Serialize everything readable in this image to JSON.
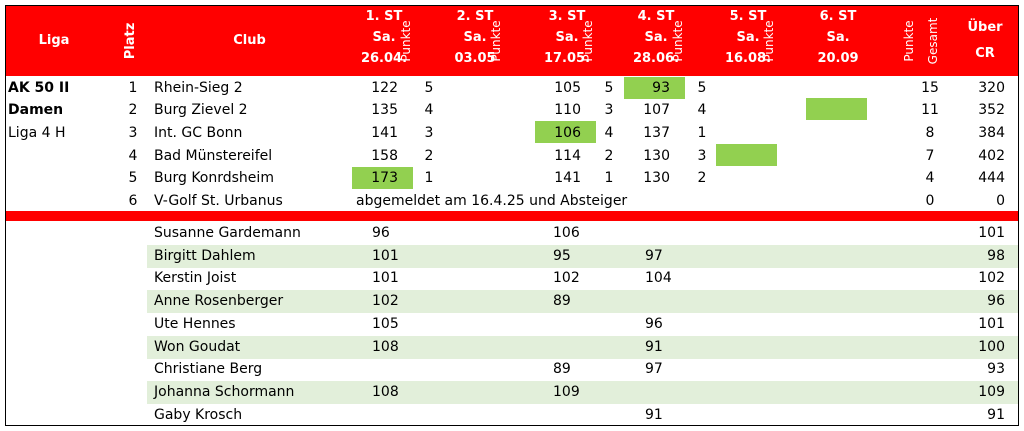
{
  "header": {
    "liga": "Liga",
    "platz": "Platz",
    "club": "Club",
    "rounds": [
      {
        "line1": "1. ST",
        "line2": "Sa.",
        "line3": "26.04."
      },
      {
        "line1": "2. ST",
        "line2": "Sa.",
        "line3": "03.05"
      },
      {
        "line1": "3. ST",
        "line2": "Sa.",
        "line3": "17.05."
      },
      {
        "line1": "4. ST",
        "line2": "Sa.",
        "line3": "28.06."
      },
      {
        "line1": "5. ST",
        "line2": "Sa.",
        "line3": "16.08."
      },
      {
        "line1": "6. ST",
        "line2": "Sa.",
        "line3": "20.09"
      }
    ],
    "punkte": "Punkte",
    "gesamt": "Gesamt",
    "ueber_line1": "Über",
    "ueber_line2": "CR"
  },
  "league": {
    "line1": "AK 50 II",
    "line2": "Damen",
    "line3": "Liga 4 H"
  },
  "teams": [
    {
      "platz": "1",
      "club": "Rhein-Sieg 2",
      "r1": "122",
      "p1": "5",
      "r3": "105",
      "p3": "5",
      "r4": "93",
      "p4": "5",
      "gesamt": "15",
      "cr": "320"
    },
    {
      "platz": "2",
      "club": "Burg Zievel 2",
      "r1": "135",
      "p1": "4",
      "r3": "110",
      "p3": "3",
      "r4": "107",
      "p4": "4",
      "gesamt": "11",
      "cr": "352"
    },
    {
      "platz": "3",
      "club": "Int. GC Bonn",
      "r1": "141",
      "p1": "3",
      "r3": "106",
      "p3": "4",
      "r4": "137",
      "p4": "1",
      "gesamt": "8",
      "cr": "384"
    },
    {
      "platz": "4",
      "club": "Bad Münstereifel",
      "r1": "158",
      "p1": "2",
      "r3": "114",
      "p3": "2",
      "r4": "130",
      "p4": "3",
      "gesamt": "7",
      "cr": "402"
    },
    {
      "platz": "5",
      "club": "Burg Konrdsheim",
      "r1": "173",
      "p1": "1",
      "r3": "141",
      "p3": "1",
      "r4": "130",
      "p4": "2",
      "gesamt": "4",
      "cr": "444"
    },
    {
      "platz": "6",
      "club": "V-Golf St. Urbanus",
      "note": "abgemeldet am 16.4.25 und Absteiger",
      "gesamt": "0",
      "cr": "0"
    }
  ],
  "players": [
    {
      "name": "Susanne Gardemann",
      "r1": "96",
      "r3": "106",
      "r4": "",
      "cr": "101"
    },
    {
      "name": "Birgitt Dahlem",
      "r1": "101",
      "r3": "95",
      "r4": "97",
      "cr": "98"
    },
    {
      "name": "Kerstin Joist",
      "r1": "101",
      "r3": "102",
      "r4": "104",
      "cr": "102"
    },
    {
      "name": "Anne Rosenberger",
      "r1": "102",
      "r3": "89",
      "r4": "",
      "cr": "96"
    },
    {
      "name": "Ute Hennes",
      "r1": "105",
      "r3": "",
      "r4": "96",
      "cr": "101"
    },
    {
      "name": "Won Goudat",
      "r1": "108",
      "r3": "",
      "r4": "91",
      "cr": "100"
    },
    {
      "name": "Christiane Berg",
      "r1": "",
      "r3": "89",
      "r4": "97",
      "cr": "93"
    },
    {
      "name": "Johanna Schormann",
      "r1": "108",
      "r3": "109",
      "r4": "",
      "cr": "109"
    },
    {
      "name": "Gaby Krosch",
      "r1": "",
      "r3": "",
      "r4": "91",
      "cr": "91"
    }
  ],
  "colors": {
    "header_red": "#ff0000",
    "highlight_green": "#92d050",
    "stripe_green": "#e2efda"
  }
}
